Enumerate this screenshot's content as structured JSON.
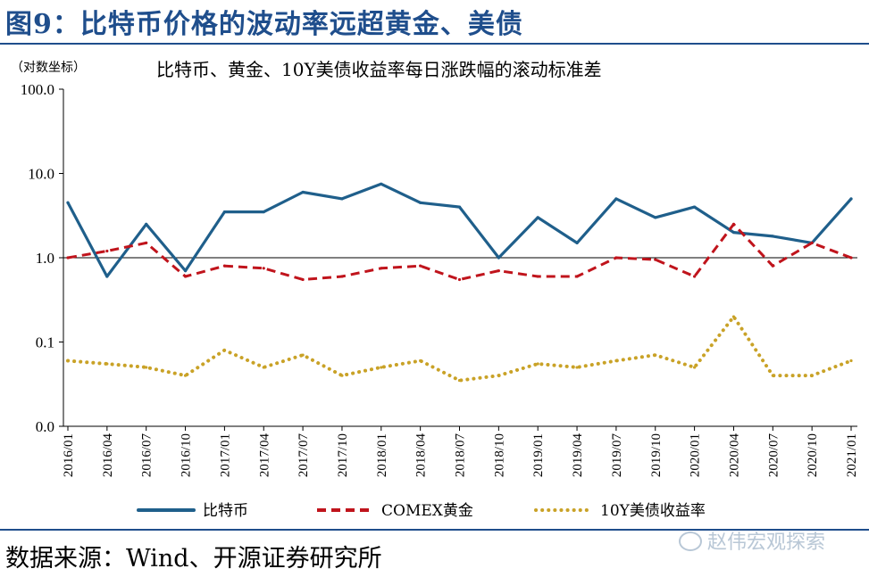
{
  "figure_title": "图9：比特币价格的波动率远超黄金、美债",
  "source": "数据来源：Wind、开源证券研究所",
  "watermark": "赵伟宏观探索",
  "colors": {
    "bitcoin": "#1f5f8b",
    "gold": "#c0141c",
    "treasury": "#c9a227",
    "title": "#1f4e8c"
  },
  "chart_data": {
    "type": "line",
    "title": "比特币、黄金、10Y美债收益率每日涨跌幅的滚动标准差",
    "ylabel": "（对数坐标）",
    "y_scale": "log",
    "ylim": [
      0.01,
      100
    ],
    "y_ticks": [
      {
        "value": 100,
        "label": "100.0"
      },
      {
        "value": 10,
        "label": "10.0"
      },
      {
        "value": 1,
        "label": "1.0"
      },
      {
        "value": 0.1,
        "label": "0.1"
      },
      {
        "value": 0.01,
        "label": "0.0"
      }
    ],
    "categories": [
      "2016/01",
      "2016/04",
      "2016/07",
      "2016/10",
      "2017/01",
      "2017/04",
      "2017/07",
      "2017/10",
      "2018/01",
      "2018/04",
      "2018/07",
      "2018/10",
      "2019/01",
      "2019/04",
      "2019/07",
      "2019/10",
      "2020/01",
      "2020/04",
      "2020/07",
      "2020/10",
      "2021/01"
    ],
    "legend_position": "bottom",
    "grid": false,
    "series": [
      {
        "name": "比特币",
        "style": "solid",
        "values": [
          4.5,
          0.6,
          2.5,
          0.7,
          3.5,
          3.5,
          6.0,
          5.0,
          7.5,
          4.5,
          4.0,
          1.0,
          3.0,
          1.5,
          5.0,
          3.0,
          4.0,
          2.0,
          1.8,
          1.5,
          5.0
        ]
      },
      {
        "name": "COMEX黄金",
        "style": "dashed",
        "values": [
          1.0,
          1.2,
          1.5,
          0.6,
          0.8,
          0.75,
          0.55,
          0.6,
          0.75,
          0.8,
          0.55,
          0.7,
          0.6,
          0.6,
          1.0,
          0.95,
          0.6,
          2.5,
          0.8,
          1.5,
          1.0
        ]
      },
      {
        "name": "10Y美债收益率",
        "style": "dotted",
        "values": [
          0.06,
          0.055,
          0.05,
          0.04,
          0.08,
          0.05,
          0.07,
          0.04,
          0.05,
          0.06,
          0.035,
          0.04,
          0.055,
          0.05,
          0.06,
          0.07,
          0.05,
          0.2,
          0.04,
          0.04,
          0.06
        ]
      }
    ]
  }
}
